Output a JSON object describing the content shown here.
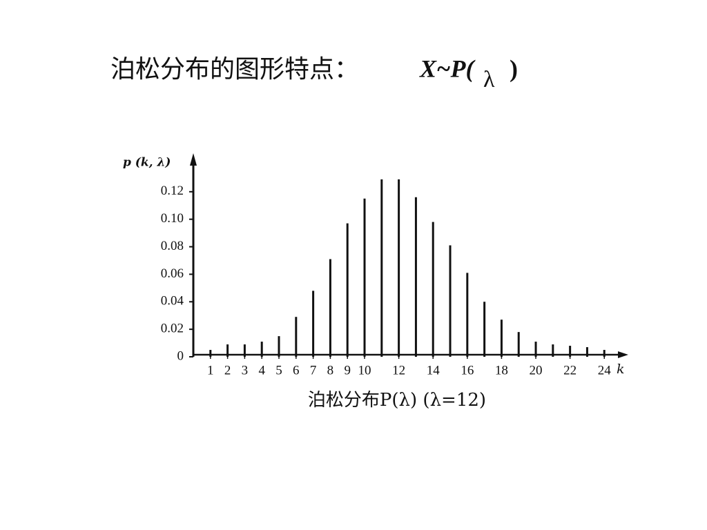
{
  "chart_data": {
    "type": "stem",
    "title": {
      "text": "泊松分布的图形特点：",
      "formula": "X~P(",
      "param": "λ",
      "close": ")"
    },
    "y_label": "p (k, λ)",
    "x_label": "k",
    "caption": "泊松分布P(λ) (λ=12)",
    "color": "#111111",
    "x": [
      1,
      2,
      3,
      4,
      5,
      6,
      7,
      8,
      9,
      10,
      11,
      12,
      13,
      14,
      15,
      16,
      17,
      18,
      19,
      20,
      21,
      22,
      23,
      24
    ],
    "values": [
      0.005,
      0.009,
      0.009,
      0.011,
      0.015,
      0.029,
      0.048,
      0.071,
      0.097,
      0.115,
      0.129,
      0.129,
      0.116,
      0.098,
      0.081,
      0.061,
      0.04,
      0.027,
      0.018,
      0.011,
      0.009,
      0.008,
      0.007,
      0.005
    ],
    "xlim": [
      0,
      25.2
    ],
    "ylim": [
      0,
      0.145
    ],
    "xticks": [
      1,
      2,
      3,
      4,
      5,
      6,
      7,
      8,
      9,
      10,
      12,
      14,
      16,
      18,
      20,
      22,
      24
    ],
    "yticks": [
      0,
      0.02,
      0.04,
      0.06,
      0.08,
      {
        "value": 0.1,
        "label": "0.10"
      },
      0.12
    ]
  }
}
